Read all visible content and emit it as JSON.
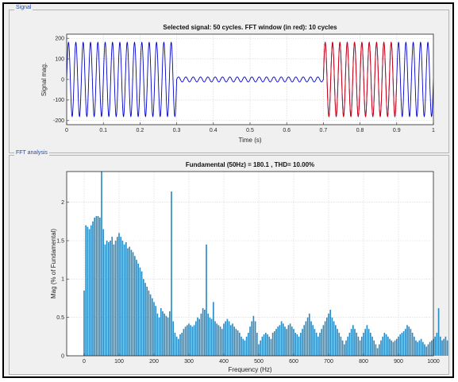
{
  "signal_panel": {
    "title": "Signal",
    "chart_data": {
      "type": "line",
      "title": "Selected signal: 50 cycles. FFT window (in red): 10 cycles",
      "xlabel": "Time (s)",
      "ylabel": "Signal mag.",
      "xlim": [
        0,
        1
      ],
      "ylim": [
        -220,
        220
      ],
      "xticks": [
        "0",
        "0.1",
        "0.2",
        "0.3",
        "0.4",
        "0.5",
        "0.6",
        "0.7",
        "0.8",
        "0.9",
        "1"
      ],
      "yticks": [
        "-200",
        "-100",
        "0",
        "100",
        "200"
      ],
      "grid": true,
      "series": [
        {
          "color": "#0000cc",
          "segments": [
            {
              "t_start": 0,
              "t_end": 0.3,
              "amplitude": 180,
              "frequency_hz": 50
            },
            {
              "t_start": 0.3,
              "t_end": 0.7,
              "amplitude": 12,
              "frequency_hz": 50
            },
            {
              "t_start": 0.7,
              "t_end": 1.0,
              "amplitude": 180,
              "frequency_hz": 50
            }
          ]
        },
        {
          "color": "#dd0000",
          "segments": [
            {
              "t_start": 0.7,
              "t_end": 0.9,
              "amplitude": 180,
              "frequency_hz": 50
            }
          ]
        }
      ]
    }
  },
  "fft_panel": {
    "title": "FFT analysis",
    "chart_data": {
      "type": "bar",
      "title": "Fundamental (50Hz) = 180.1 , THD= 10.00%",
      "xlabel": "Frequency (Hz)",
      "ylabel": "Mag (% of Fundamental)",
      "xlim": [
        -50,
        1000
      ],
      "ylim": [
        0,
        2.4
      ],
      "xticks": [
        "0",
        "100",
        "200",
        "300",
        "400",
        "500",
        "600",
        "700",
        "800",
        "900",
        "1000"
      ],
      "yticks": [
        "0",
        "0.5",
        "1",
        "1.5",
        "2"
      ],
      "grid": true,
      "bar_color": "#2a8cc4",
      "x_start": 0,
      "x_step": 5,
      "values": [
        0.85,
        1.7,
        1.68,
        1.65,
        1.7,
        1.75,
        1.8,
        1.82,
        1.82,
        1.8,
        2.4,
        1.65,
        1.45,
        1.5,
        1.48,
        1.5,
        1.55,
        1.45,
        1.5,
        1.55,
        1.6,
        1.55,
        1.5,
        1.45,
        1.48,
        1.4,
        1.42,
        1.38,
        1.35,
        1.3,
        1.25,
        1.2,
        1.15,
        1.1,
        1.0,
        0.95,
        0.9,
        0.85,
        0.8,
        0.75,
        0.7,
        0.65,
        0.55,
        0.5,
        0.62,
        0.58,
        0.55,
        0.52,
        0.5,
        0.58,
        2.14,
        0.45,
        0.3,
        0.25,
        0.22,
        0.28,
        0.3,
        0.35,
        0.38,
        0.4,
        0.42,
        0.4,
        0.38,
        0.4,
        0.45,
        0.5,
        0.48,
        0.55,
        0.62,
        0.6,
        1.45,
        0.55,
        0.5,
        0.48,
        0.7,
        0.45,
        0.42,
        0.4,
        0.38,
        0.35,
        0.42,
        0.45,
        0.48,
        0.45,
        0.4,
        0.42,
        0.38,
        0.35,
        0.33,
        0.3,
        0.25,
        0.22,
        0.2,
        0.25,
        0.3,
        0.38,
        0.45,
        0.52,
        0.45,
        0.3,
        0.15,
        0.2,
        0.25,
        0.28,
        0.3,
        0.28,
        0.25,
        0.22,
        0.3,
        0.32,
        0.35,
        0.38,
        0.4,
        0.45,
        0.42,
        0.38,
        0.35,
        0.4,
        0.42,
        0.38,
        0.35,
        0.3,
        0.28,
        0.25,
        0.3,
        0.35,
        0.4,
        0.45,
        0.5,
        0.55,
        0.45,
        0.4,
        0.35,
        0.3,
        0.25,
        0.3,
        0.35,
        0.4,
        0.45,
        0.5,
        0.55,
        0.6,
        0.5,
        0.45,
        0.4,
        0.35,
        0.3,
        0.25,
        0.2,
        0.15,
        0.2,
        0.25,
        0.3,
        0.35,
        0.4,
        0.35,
        0.3,
        0.25,
        0.2,
        0.25,
        0.3,
        0.35,
        0.4,
        0.35,
        0.3,
        0.25,
        0.2,
        0.15,
        0.1,
        0.15,
        0.2,
        0.25,
        0.3,
        0.28,
        0.25,
        0.22,
        0.2,
        0.18,
        0.2,
        0.22,
        0.25,
        0.28,
        0.3,
        0.32,
        0.35,
        0.4,
        0.38,
        0.35,
        0.3,
        0.25,
        0.2,
        0.18,
        0.2,
        0.22,
        0.18,
        0.15,
        0.12,
        0.15,
        0.18,
        0.2,
        0.22,
        0.25,
        0.3,
        0.62,
        0.25,
        0.2,
        0.22,
        0.25,
        0.2,
        0.22,
        0.18
      ]
    }
  }
}
